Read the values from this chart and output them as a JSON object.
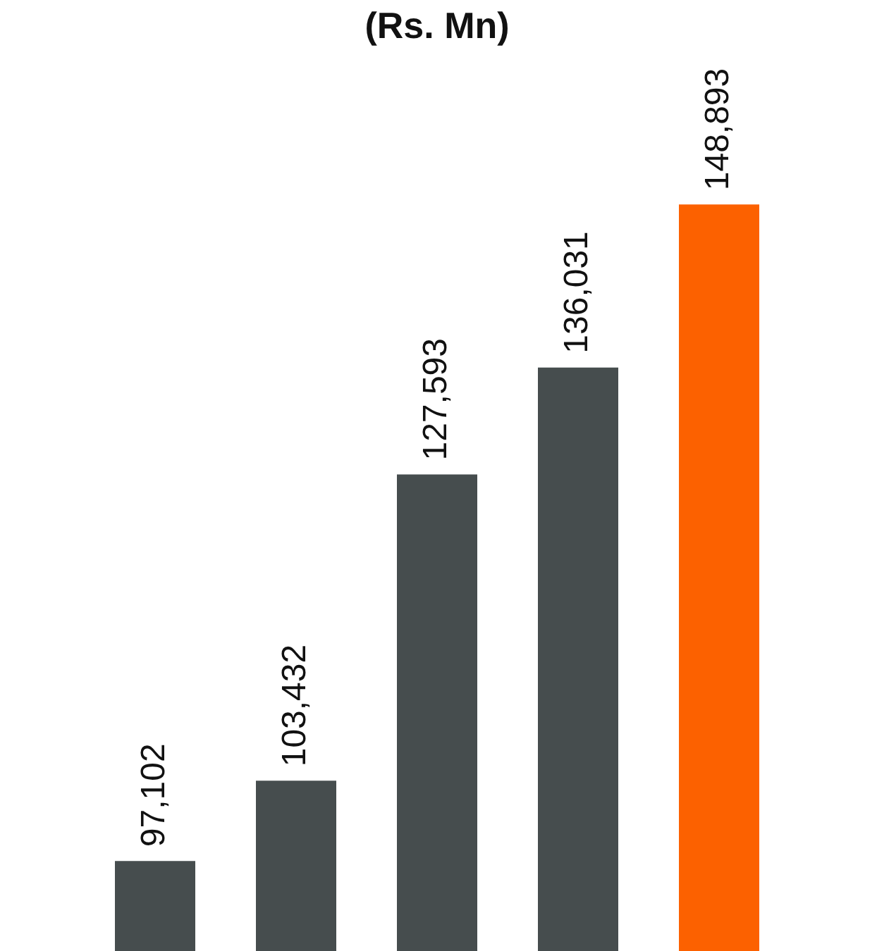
{
  "chart_data": {
    "type": "bar",
    "title": "(Rs. Mn)",
    "categories": [
      null,
      null,
      null,
      null,
      null
    ],
    "values": [
      97102,
      103432,
      127593,
      136031,
      148893
    ],
    "colors": [
      "#464d4e",
      "#464d4e",
      "#464d4e",
      "#464d4e",
      "#fc6100"
    ],
    "value_labels": [
      "97,102",
      "103,432",
      "127,593",
      "136,031",
      "148,893"
    ],
    "tick_labels": false
  }
}
